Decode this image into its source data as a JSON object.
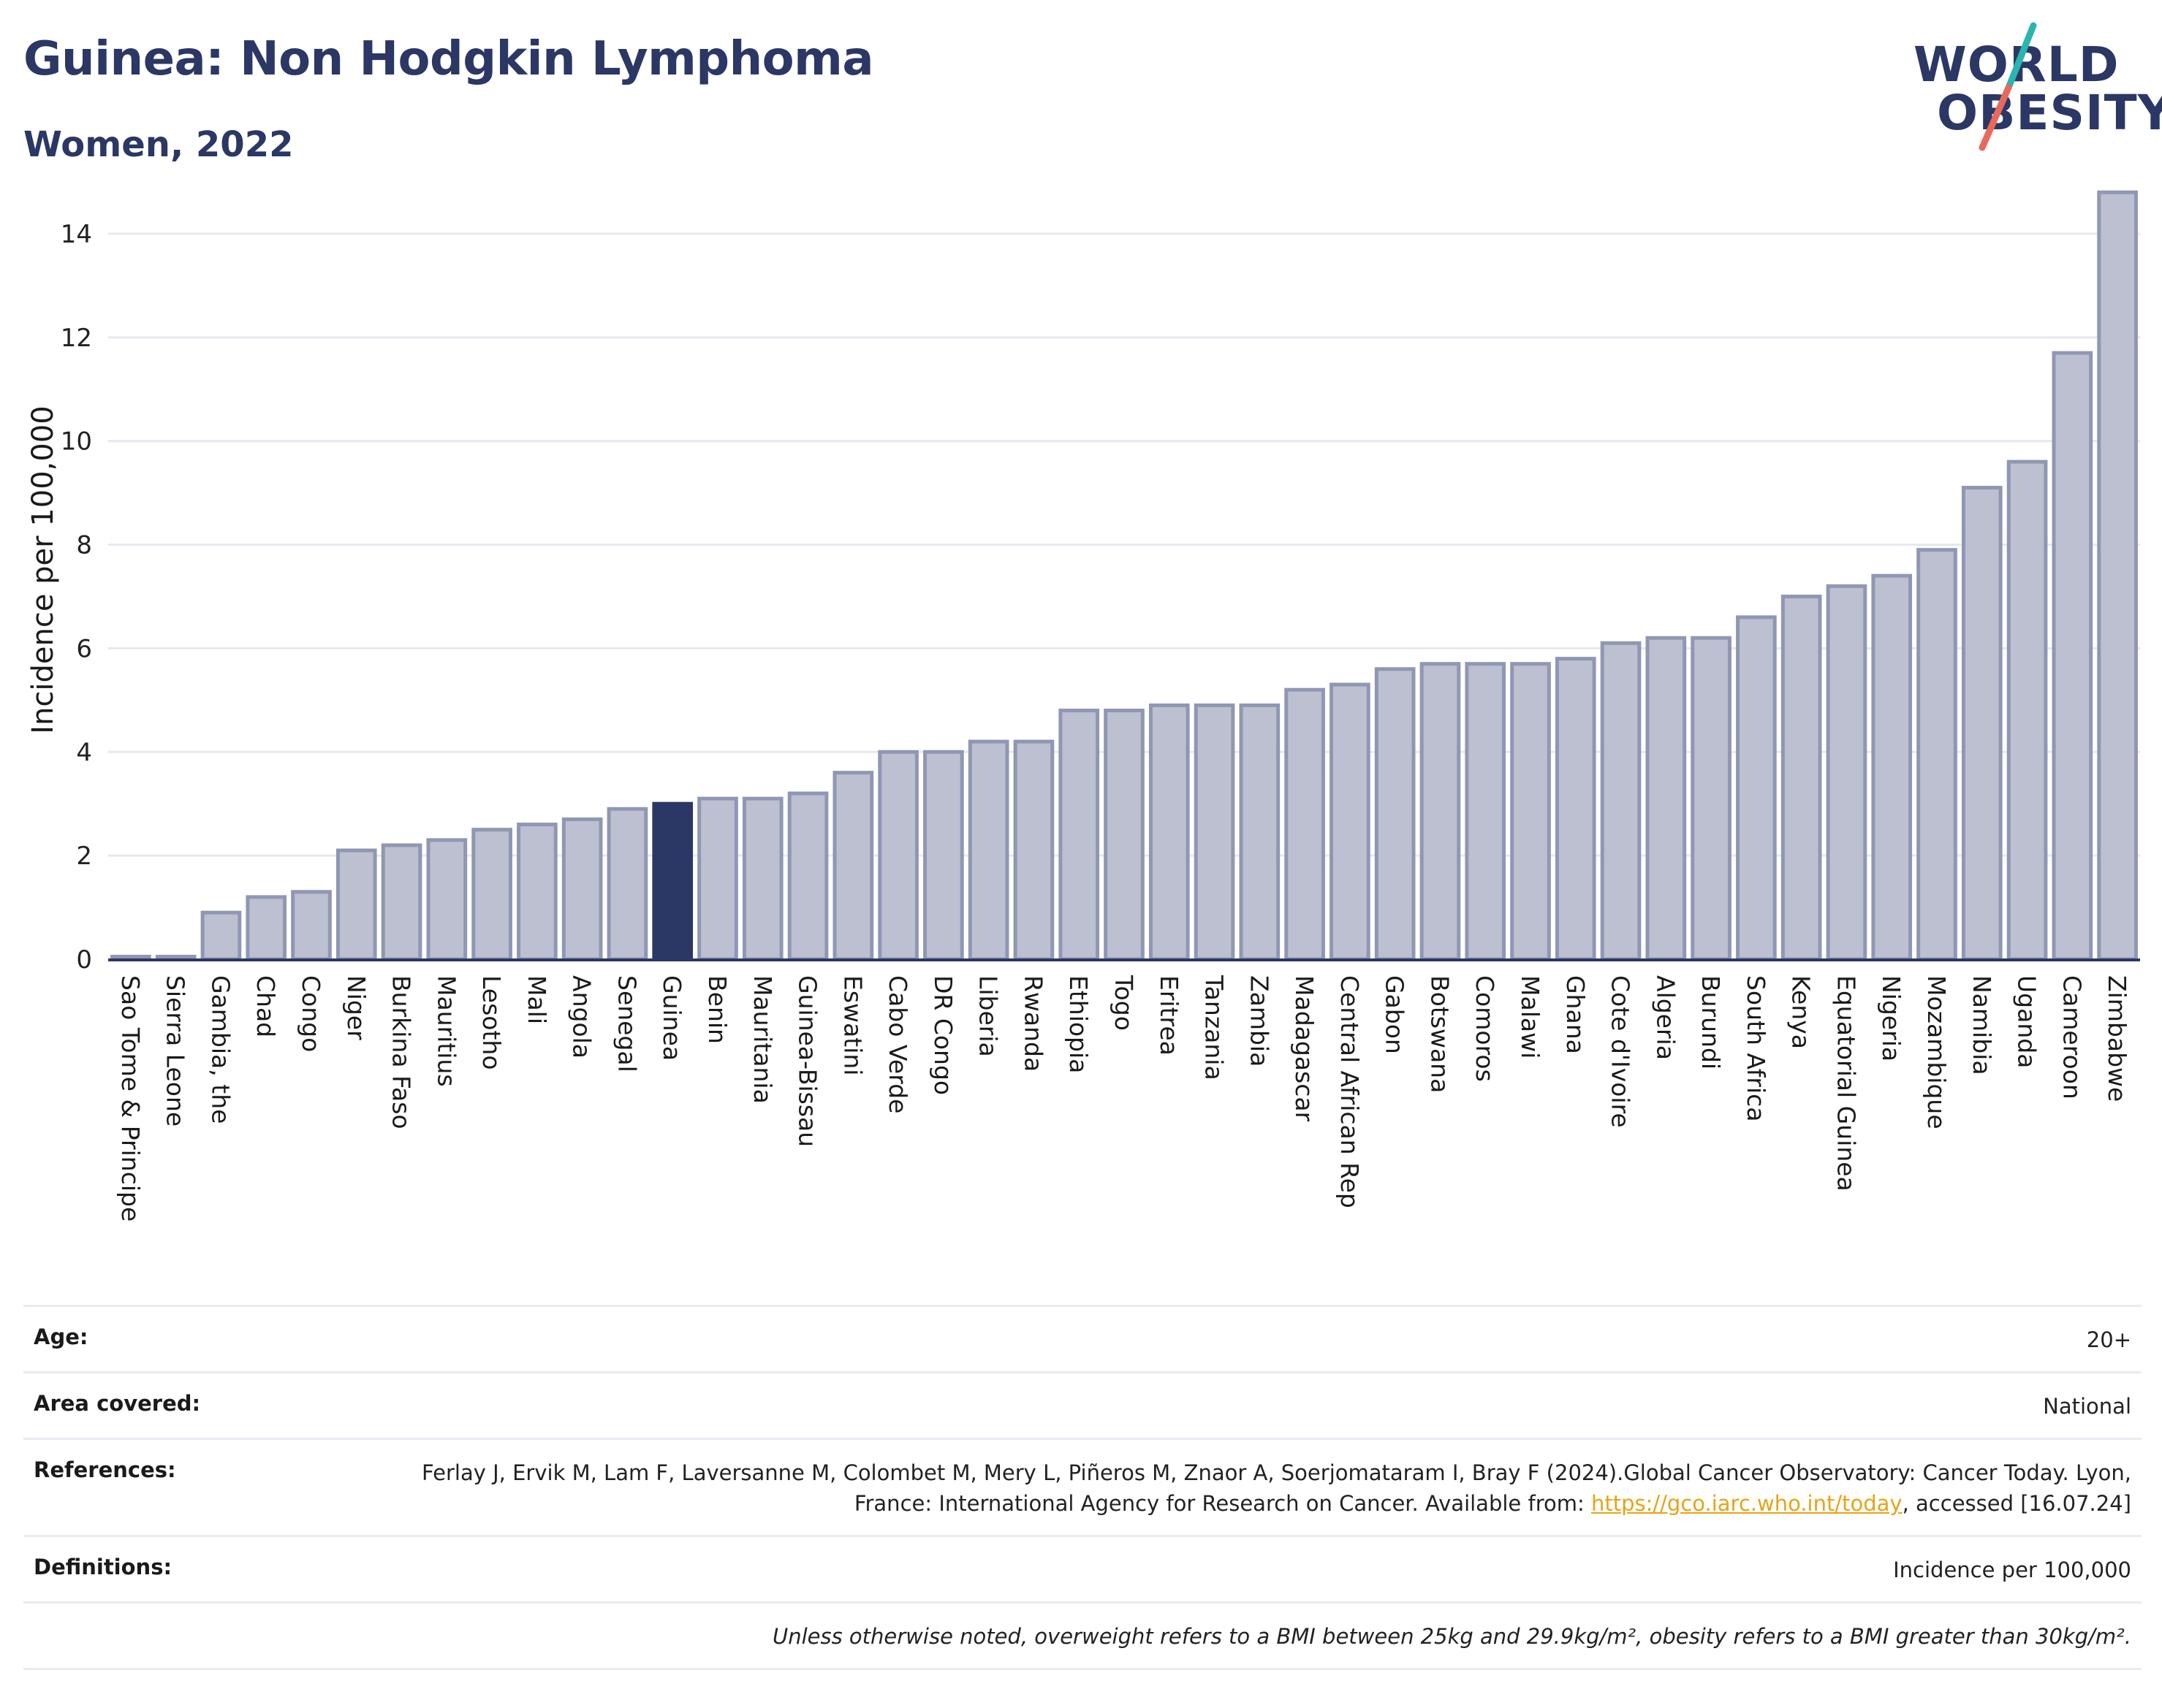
{
  "title": "Guinea: Non Hodgkin Lymphoma",
  "subtitle": "Women, 2022",
  "logo": {
    "line1": "WORLD",
    "line2": "OBESITY",
    "slash_colors": [
      "#2ab5b0",
      "#e8695b"
    ]
  },
  "colors": {
    "bar": "#bcc0d0",
    "bar_stroke": "#8f97b3",
    "highlight": "#2b3764",
    "grid": "#e6e8ef",
    "text": "#2b3764"
  },
  "chart_data": {
    "type": "bar",
    "ylabel": "Incidence per 100,000",
    "xlabel": "",
    "ylim": [
      0,
      15
    ],
    "yticks": [
      0,
      2,
      4,
      6,
      8,
      10,
      12,
      14
    ],
    "grid": true,
    "highlight": "Guinea",
    "categories": [
      "Sao Tome & Principe",
      "Sierra Leone",
      "Gambia, the",
      "Chad",
      "Congo",
      "Niger",
      "Burkina Faso",
      "Mauritius",
      "Lesotho",
      "Mali",
      "Angola",
      "Senegal",
      "Guinea",
      "Benin",
      "Mauritania",
      "Guinea-Bissau",
      "Eswatini",
      "Cabo Verde",
      "DR Congo",
      "Liberia",
      "Rwanda",
      "Ethiopia",
      "Togo",
      "Eritrea",
      "Tanzania",
      "Zambia",
      "Madagascar",
      "Central African Rep",
      "Gabon",
      "Botswana",
      "Comoros",
      "Malawi",
      "Ghana",
      "Cote d'Ivoire",
      "Algeria",
      "Burundi",
      "South Africa",
      "Kenya",
      "Equatorial Guinea",
      "Nigeria",
      "Mozambique",
      "Namibia",
      "Uganda",
      "Cameroon",
      "Zimbabwe"
    ],
    "values": [
      0.05,
      0.05,
      0.9,
      1.2,
      1.3,
      2.1,
      2.2,
      2.3,
      2.5,
      2.6,
      2.7,
      2.9,
      3.0,
      3.1,
      3.1,
      3.2,
      3.6,
      4.0,
      4.0,
      4.2,
      4.2,
      4.8,
      4.8,
      4.9,
      4.9,
      4.9,
      5.2,
      5.3,
      5.6,
      5.7,
      5.7,
      5.7,
      5.8,
      6.1,
      6.2,
      6.2,
      6.6,
      7.0,
      7.2,
      7.4,
      7.9,
      9.1,
      9.6,
      11.7,
      14.8
    ]
  },
  "info": {
    "age_label": "Age:",
    "age_value": "20+",
    "area_label": "Area covered:",
    "area_value": "National",
    "references_label": "References:",
    "references_text": "Ferlay J, Ervik M, Lam F, Laversanne M, Colombet M, Mery L, Piñeros M, Znaor A, Soerjomataram I, Bray F (2024).Global Cancer Observatory: Cancer Today. Lyon, France: International Agency for Research on Cancer. Available from: ",
    "references_link": "https://gco.iarc.who.int/today",
    "references_after": ", accessed [16.07.24]",
    "definitions_label": "Definitions:",
    "definitions_value": "Incidence per 100,000",
    "note": "Unless otherwise noted, overweight refers to a BMI between 25kg and 29.9kg/m², obesity refers to a BMI greater than 30kg/m²."
  }
}
